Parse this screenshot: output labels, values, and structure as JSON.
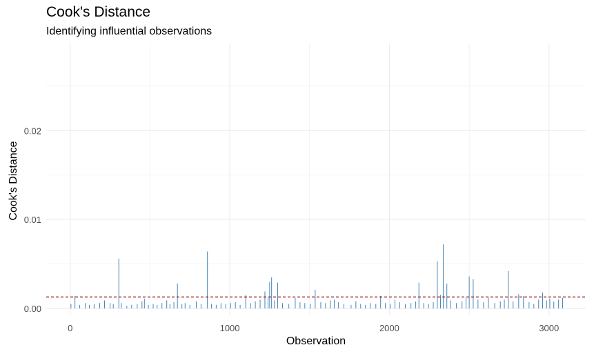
{
  "chart_data": {
    "type": "bar",
    "title": "Cook's Distance",
    "subtitle": "Identifying influential observations",
    "xlabel": "Observation",
    "ylabel": "Cook's Distance",
    "xlim": [
      -150,
      3230
    ],
    "ylim": [
      -0.0007,
      0.0298
    ],
    "x_ticks": [
      0,
      1000,
      2000,
      3000
    ],
    "x_tick_labels": [
      "0",
      "1000",
      "2000",
      "3000"
    ],
    "y_ticks": [
      0.0,
      0.01,
      0.02
    ],
    "y_tick_labels": [
      "0.00",
      "0.01",
      "0.02"
    ],
    "threshold": 0.00129,
    "grid": true,
    "colors": {
      "bars": "#4682b4",
      "threshold": "#8b0000",
      "grid": "#ebebeb"
    },
    "series": [
      {
        "x": [
          5,
          30,
          60,
          95,
          120,
          150,
          185,
          215,
          250,
          270,
          305,
          320,
          355,
          385,
          420,
          450,
          465,
          490,
          520,
          545,
          575,
          605,
          625,
          650,
          672,
          700,
          720,
          750,
          790,
          820,
          860,
          885,
          915,
          945,
          975,
          1005,
          1035,
          1065,
          1100,
          1130,
          1160,
          1190,
          1220,
          1240,
          1250,
          1262,
          1280,
          1300,
          1330,
          1370,
          1410,
          1440,
          1470,
          1505,
          1535,
          1570,
          1600,
          1630,
          1655,
          1680,
          1715,
          1760,
          1790,
          1820,
          1850,
          1880,
          1915,
          1945,
          1975,
          2005,
          2035,
          2065,
          2100,
          2135,
          2165,
          2185,
          2215,
          2245,
          2275,
          2300,
          2320,
          2338,
          2360,
          2385,
          2420,
          2455,
          2480,
          2500,
          2525,
          2555,
          2590,
          2620,
          2660,
          2695,
          2720,
          2745,
          2775,
          2810,
          2840,
          2875,
          2905,
          2935,
          2960,
          2985,
          3005,
          3030,
          3060,
          3085
        ],
        "values": [
          0.0005,
          0.0014,
          0.0004,
          0.0006,
          0.0004,
          0.0005,
          0.0006,
          0.0009,
          0.0006,
          0.0005,
          0.0056,
          0.0006,
          0.0003,
          0.0004,
          0.0005,
          0.0008,
          0.0011,
          0.0004,
          0.0005,
          0.0004,
          0.0006,
          0.0009,
          0.0005,
          0.0007,
          0.0028,
          0.0005,
          0.0006,
          0.0004,
          0.0008,
          0.0005,
          0.0064,
          0.0005,
          0.0004,
          0.0006,
          0.0005,
          0.0006,
          0.0007,
          0.0004,
          0.0015,
          0.0006,
          0.0008,
          0.001,
          0.0019,
          0.0012,
          0.003,
          0.0035,
          0.0009,
          0.0029,
          0.0006,
          0.0005,
          0.0012,
          0.0007,
          0.0006,
          0.0005,
          0.0021,
          0.0007,
          0.0006,
          0.0009,
          0.001,
          0.0007,
          0.0005,
          0.0004,
          0.0008,
          0.0005,
          0.0004,
          0.0006,
          0.0005,
          0.0014,
          0.0006,
          0.0005,
          0.001,
          0.0007,
          0.0005,
          0.0006,
          0.0008,
          0.0029,
          0.0006,
          0.0005,
          0.0007,
          0.0053,
          0.0015,
          0.0072,
          0.0028,
          0.0009,
          0.0006,
          0.0008,
          0.0012,
          0.0036,
          0.0033,
          0.001,
          0.0007,
          0.0012,
          0.0006,
          0.0008,
          0.001,
          0.0042,
          0.0008,
          0.0016,
          0.0014,
          0.0007,
          0.0005,
          0.001,
          0.0018,
          0.0009,
          0.0011,
          0.0008,
          0.001,
          0.0012
        ]
      }
    ]
  }
}
